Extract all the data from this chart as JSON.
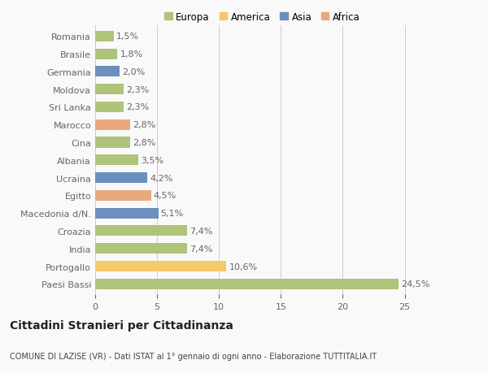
{
  "countries": [
    "Romania",
    "Brasile",
    "Germania",
    "Moldova",
    "Sri Lanka",
    "Marocco",
    "Cina",
    "Albania",
    "Ucraina",
    "Egitto",
    "Macedonia d/N.",
    "Croazia",
    "India",
    "Portogallo",
    "Paesi Bassi"
  ],
  "values": [
    24.5,
    10.6,
    7.4,
    7.4,
    5.1,
    4.5,
    4.2,
    3.5,
    2.8,
    2.8,
    2.3,
    2.3,
    2.0,
    1.8,
    1.5
  ],
  "labels": [
    "24,5%",
    "10,6%",
    "7,4%",
    "7,4%",
    "5,1%",
    "4,5%",
    "4,2%",
    "3,5%",
    "2,8%",
    "2,8%",
    "2,3%",
    "2,3%",
    "2,0%",
    "1,8%",
    "1,5%"
  ],
  "colors": [
    "#adc47a",
    "#f5c869",
    "#adc47a",
    "#adc47a",
    "#6b8fbe",
    "#e8a87c",
    "#6b8fbe",
    "#adc47a",
    "#adc47a",
    "#e8a87c",
    "#adc47a",
    "#adc47a",
    "#6b8fbe",
    "#adc47a",
    "#adc47a"
  ],
  "legend": {
    "Europa": "#adc47a",
    "America": "#f5c869",
    "Asia": "#6b8fbe",
    "Africa": "#e8a87c"
  },
  "title": "Cittadini Stranieri per Cittadinanza",
  "subtitle": "COMUNE DI LAZISE (VR) - Dati ISTAT al 1° gennaio di ogni anno - Elaborazione TUTTITALIA.IT",
  "xlim": [
    0,
    27
  ],
  "xticks": [
    0,
    5,
    10,
    15,
    20,
    25
  ],
  "background_color": "#f9f9f9",
  "bar_height": 0.6,
  "grid_color": "#cccccc",
  "text_color": "#666666",
  "label_fontsize": 8,
  "tick_fontsize": 8,
  "legend_fontsize": 8.5,
  "title_fontsize": 10,
  "subtitle_fontsize": 7
}
